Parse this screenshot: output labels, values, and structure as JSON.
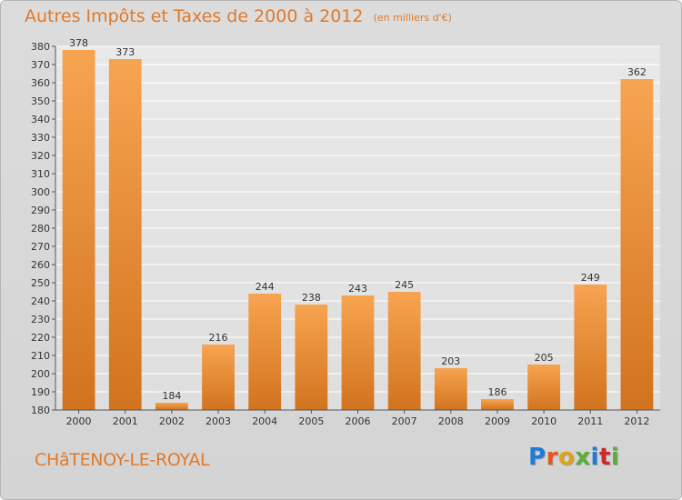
{
  "title": "Autres Impôts et Taxes de 2000 à 2012",
  "unit": "(en milliers d'€)",
  "commune": "CHâTENOY-LE-ROYAL",
  "brand": "Proxiti",
  "brand_colors": [
    "#1f7bd6",
    "#e8561d",
    "#e0a21a",
    "#5cae36",
    "#1f7bd6",
    "#cc2a2a",
    "#5cae36"
  ],
  "colors": {
    "accent": "#e07a2a",
    "bar_light": "#f7a450",
    "bar_dark": "#d2731e",
    "label": "#333333"
  },
  "chart_data": {
    "type": "bar",
    "categories": [
      "2000",
      "2001",
      "2002",
      "2003",
      "2004",
      "2005",
      "2006",
      "2007",
      "2008",
      "2009",
      "2010",
      "2011",
      "2012"
    ],
    "values": [
      378,
      373,
      184,
      216,
      244,
      238,
      243,
      245,
      203,
      186,
      205,
      249,
      362
    ],
    "ylim": [
      180,
      380
    ],
    "yticks": [
      180,
      190,
      200,
      210,
      220,
      230,
      240,
      250,
      260,
      270,
      280,
      290,
      300,
      310,
      320,
      330,
      340,
      350,
      360,
      370,
      380
    ],
    "grid": true,
    "legend": "none"
  }
}
